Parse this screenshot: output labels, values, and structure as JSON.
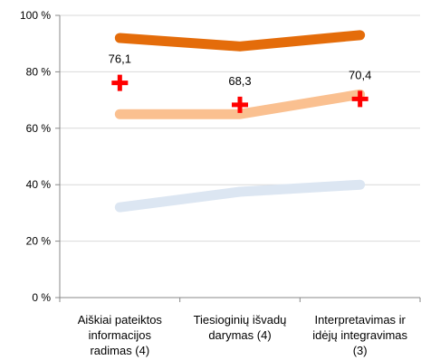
{
  "chart_data": {
    "type": "line",
    "categories": [
      [
        "Aiškiai pateiktos",
        "informacijos",
        "radimas (4)"
      ],
      [
        "Tiesioginių išvadų",
        "darymas (4)"
      ],
      [
        "Interpretavimas ir",
        "idėjų integravimas",
        "(3)"
      ]
    ],
    "y_ticks": [
      "0 %",
      "20 %",
      "40 %",
      "60 %",
      "80 %",
      "100 %"
    ],
    "ylim": [
      0,
      100
    ],
    "grid": "horizontal",
    "legend": "none",
    "series": [
      {
        "values": [
          92,
          89,
          93
        ],
        "color": "#e46c0a",
        "style": "thick-line"
      },
      {
        "values": [
          65,
          65,
          72
        ],
        "color": "#fac090",
        "style": "thick-line"
      },
      {
        "values": [
          32,
          37.5,
          40
        ],
        "color": "#dce6f2",
        "style": "thick-line"
      },
      {
        "values": [
          76.1,
          68.3,
          70.4
        ],
        "color": "#ff0000",
        "style": "cross-marker",
        "labels": [
          "76,1",
          "68,3",
          "70,4"
        ]
      }
    ]
  }
}
